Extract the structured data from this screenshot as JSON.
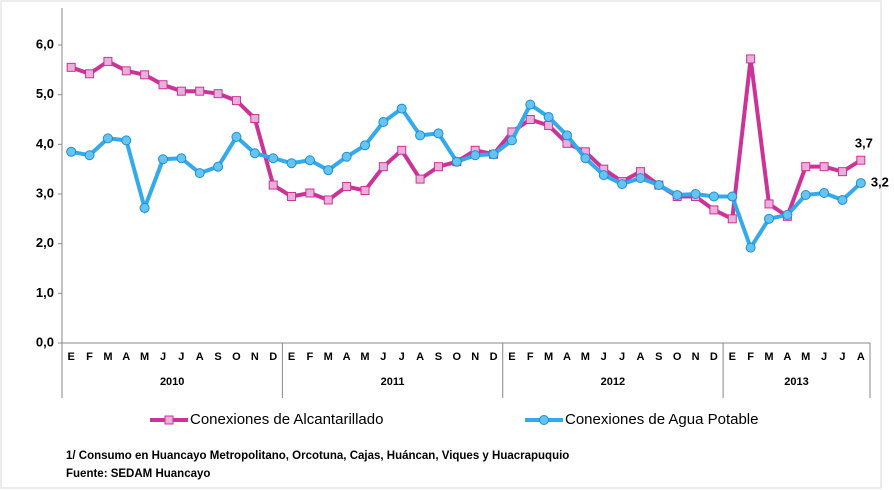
{
  "chart_data": {
    "type": "line",
    "categories": [
      "E",
      "F",
      "M",
      "A",
      "M",
      "J",
      "J",
      "A",
      "S",
      "O",
      "N",
      "D",
      "E",
      "F",
      "M",
      "A",
      "M",
      "J",
      "J",
      "A",
      "S",
      "O",
      "N",
      "D",
      "E",
      "F",
      "M",
      "A",
      "M",
      "J",
      "J",
      "A",
      "S",
      "O",
      "N",
      "D",
      "E",
      "F",
      "M",
      "A",
      "M",
      "J",
      "J",
      "A"
    ],
    "years": [
      "2010",
      "2011",
      "2012",
      "2013"
    ],
    "series": [
      {
        "name": "Conexiones de Alcantarillado",
        "color": "#cc3399",
        "marker": "square",
        "values": [
          5.55,
          5.42,
          5.67,
          5.48,
          5.4,
          5.2,
          5.07,
          5.07,
          5.02,
          4.88,
          4.52,
          3.18,
          2.95,
          3.02,
          2.88,
          3.15,
          3.07,
          3.55,
          3.88,
          3.3,
          3.55,
          3.65,
          3.88,
          3.8,
          4.25,
          4.5,
          4.38,
          4.02,
          3.85,
          3.5,
          3.25,
          3.45,
          3.18,
          2.95,
          2.95,
          2.68,
          2.5,
          5.72,
          2.8,
          2.55,
          3.55,
          3.55,
          3.45,
          3.68
        ],
        "value_labels": [
          null,
          null,
          null,
          null,
          null,
          null,
          null,
          null,
          null,
          null,
          null,
          null,
          null,
          null,
          null,
          null,
          null,
          null,
          null,
          null,
          null,
          null,
          null,
          null,
          null,
          null,
          null,
          null,
          null,
          null,
          null,
          null,
          null,
          null,
          null,
          null,
          null,
          null,
          null,
          null,
          null,
          null,
          null,
          "3,7"
        ]
      },
      {
        "name": "Conexiones de Agua Potable",
        "color": "#33aaee",
        "marker": "circle",
        "values": [
          3.85,
          3.78,
          4.12,
          4.08,
          2.72,
          3.7,
          3.72,
          3.42,
          3.55,
          4.15,
          3.82,
          3.72,
          3.62,
          3.68,
          3.48,
          3.75,
          3.98,
          4.45,
          4.72,
          4.18,
          4.22,
          3.65,
          3.78,
          3.8,
          4.08,
          4.8,
          4.55,
          4.18,
          3.72,
          3.38,
          3.2,
          3.32,
          3.18,
          2.98,
          3.0,
          2.95,
          2.95,
          1.92,
          2.5,
          2.58,
          2.98,
          3.02,
          2.88,
          3.22
        ],
        "value_labels": [
          null,
          null,
          null,
          null,
          null,
          null,
          null,
          null,
          null,
          null,
          null,
          null,
          null,
          null,
          null,
          null,
          null,
          null,
          null,
          null,
          null,
          null,
          null,
          null,
          null,
          null,
          null,
          null,
          null,
          null,
          null,
          null,
          null,
          null,
          null,
          null,
          null,
          null,
          null,
          null,
          null,
          null,
          null,
          "3,2"
        ]
      }
    ],
    "ylim": [
      0,
      6
    ],
    "yticks": [
      {
        "value": 0,
        "label": "0,0"
      },
      {
        "value": 1,
        "label": "1,0"
      },
      {
        "value": 2,
        "label": "2,0"
      },
      {
        "value": 3,
        "label": "3,0"
      },
      {
        "value": 4,
        "label": "4,0"
      },
      {
        "value": 5,
        "label": "5,0"
      },
      {
        "value": 6,
        "label": "6,0"
      }
    ],
    "grid": false,
    "legend": "bottom",
    "notes": [
      "1/ Consumo en Huancayo Metropolitano, Orcotuna, Cajas, Huáncan, Viques y Huacrapuquio",
      "Fuente: SEDAM Huancayo"
    ]
  }
}
